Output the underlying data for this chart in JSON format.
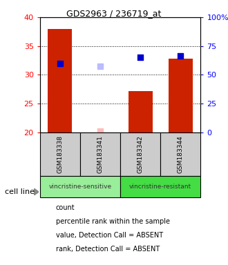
{
  "title": "GDS2963 / 236719_at",
  "samples": [
    "GSM183338",
    "GSM183341",
    "GSM183342",
    "GSM183344"
  ],
  "bar_values": [
    38.0,
    null,
    27.2,
    32.8
  ],
  "bar_color": "#cc2200",
  "absent_value_markers": [
    null,
    20.2,
    null,
    null
  ],
  "absent_rank_markers": [
    null,
    31.5,
    null,
    null
  ],
  "rank_markers": [
    32.0,
    null,
    33.0,
    33.3
  ],
  "ylim_left": [
    20,
    40
  ],
  "ylim_right": [
    0,
    100
  ],
  "yticks_left": [
    20,
    25,
    30,
    35,
    40
  ],
  "yticks_right": [
    0,
    25,
    50,
    75,
    100
  ],
  "ytick_labels_right": [
    "0",
    "25",
    "50",
    "75",
    "100%"
  ],
  "groups": [
    {
      "label": "vincristine-sensitive",
      "samples": [
        0,
        1
      ],
      "color": "#99ee99"
    },
    {
      "label": "vincristine-resistant",
      "samples": [
        2,
        3
      ],
      "color": "#44dd44"
    }
  ],
  "cell_line_label": "cell line",
  "legend_items": [
    {
      "label": "count",
      "color": "#cc2200"
    },
    {
      "label": "percentile rank within the sample",
      "color": "#0000cc"
    },
    {
      "label": "value, Detection Call = ABSENT",
      "color": "#ffbbbb"
    },
    {
      "label": "rank, Detection Call = ABSENT",
      "color": "#bbbbff"
    }
  ],
  "bar_width": 0.6,
  "marker_size": 40,
  "grid_linestyle": ":",
  "grid_color": "#000000",
  "sample_box_color": "#cccccc"
}
